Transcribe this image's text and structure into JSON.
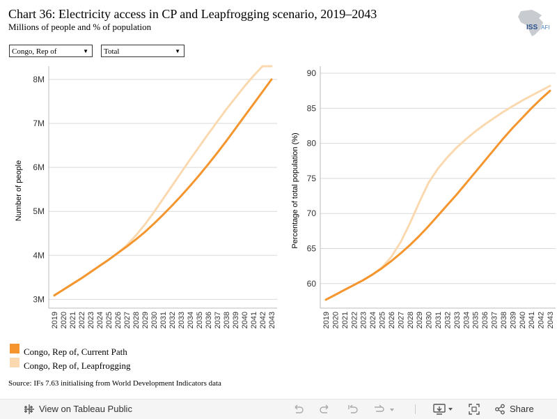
{
  "header": {
    "title": "Chart 36: Electricity access in CP and Leapfrogging scenario, 2019–2043",
    "subtitle": "Millions of people and % of population",
    "logo_text": "ISS AFI"
  },
  "filters": {
    "country": "Congo, Rep of",
    "category": "Total"
  },
  "colors": {
    "current_path": "#f5952d",
    "leapfrogging": "#fbd9b0"
  },
  "legend": [
    {
      "label": "Congo, Rep of, Current Path",
      "color": "#f5952d"
    },
    {
      "label": "Congo, Rep of, Leapfrogging",
      "color": "#fbd9b0"
    }
  ],
  "source": "Source: IFs 7.63 initialising from World Development Indicators data",
  "footer": {
    "view_label": "View on Tableau Public",
    "share_label": "Share"
  },
  "chart_data": [
    {
      "type": "line",
      "ylabel": "Number of people",
      "ytick_labels": [
        "3M",
        "4M",
        "5M",
        "6M",
        "7M",
        "8M"
      ],
      "yticks": [
        3,
        4,
        5,
        6,
        7,
        8
      ],
      "ylim": [
        2.8,
        8.3
      ],
      "x": [
        "2019",
        "2020",
        "2021",
        "2022",
        "2023",
        "2024",
        "2025",
        "2026",
        "2027",
        "2028",
        "2029",
        "2030",
        "2031",
        "2032",
        "2033",
        "2034",
        "2035",
        "2036",
        "2037",
        "2038",
        "2039",
        "2040",
        "2041",
        "2042",
        "2043"
      ],
      "grid": true,
      "series": [
        {
          "name": "Congo, Rep of, Current Path",
          "values": [
            3.09,
            3.22,
            3.35,
            3.48,
            3.62,
            3.76,
            3.9,
            4.05,
            4.2,
            4.36,
            4.53,
            4.72,
            4.92,
            5.13,
            5.35,
            5.58,
            5.82,
            6.07,
            6.33,
            6.6,
            6.88,
            7.16,
            7.44,
            7.72,
            8.0
          ]
        },
        {
          "name": "Congo, Rep of, Leapfrogging",
          "values": [
            3.09,
            3.22,
            3.35,
            3.48,
            3.62,
            3.76,
            3.9,
            4.05,
            4.23,
            4.45,
            4.7,
            4.98,
            5.28,
            5.58,
            5.88,
            6.18,
            6.47,
            6.76,
            7.04,
            7.32,
            7.58,
            7.84,
            8.08,
            8.32,
            8.56
          ]
        }
      ]
    },
    {
      "type": "line",
      "ylabel": "Percentage of total population (%)",
      "ytick_labels": [
        "60",
        "65",
        "70",
        "75",
        "80",
        "85",
        "90"
      ],
      "yticks": [
        60,
        65,
        70,
        75,
        80,
        85,
        90
      ],
      "ylim": [
        56.5,
        91
      ],
      "x": [
        "2019",
        "2020",
        "2021",
        "2022",
        "2023",
        "2024",
        "2025",
        "2026",
        "2027",
        "2028",
        "2029",
        "2030",
        "2031",
        "2032",
        "2033",
        "2034",
        "2035",
        "2036",
        "2037",
        "2038",
        "2039",
        "2040",
        "2041",
        "2042",
        "2043"
      ],
      "grid": true,
      "series": [
        {
          "name": "Congo, Rep of, Current Path",
          "values": [
            57.7,
            58.4,
            59.1,
            59.8,
            60.5,
            61.3,
            62.2,
            63.2,
            64.3,
            65.5,
            66.8,
            68.2,
            69.7,
            71.2,
            72.7,
            74.3,
            75.9,
            77.5,
            79.1,
            80.7,
            82.2,
            83.6,
            85.0,
            86.3,
            87.5
          ]
        },
        {
          "name": "Congo, Rep of, Leapfrogging",
          "values": [
            57.7,
            58.4,
            59.1,
            59.8,
            60.5,
            61.3,
            62.3,
            63.8,
            65.9,
            68.6,
            71.6,
            74.4,
            76.4,
            78.0,
            79.4,
            80.6,
            81.7,
            82.7,
            83.6,
            84.5,
            85.3,
            86.1,
            86.8,
            87.5,
            88.2
          ]
        }
      ]
    }
  ]
}
